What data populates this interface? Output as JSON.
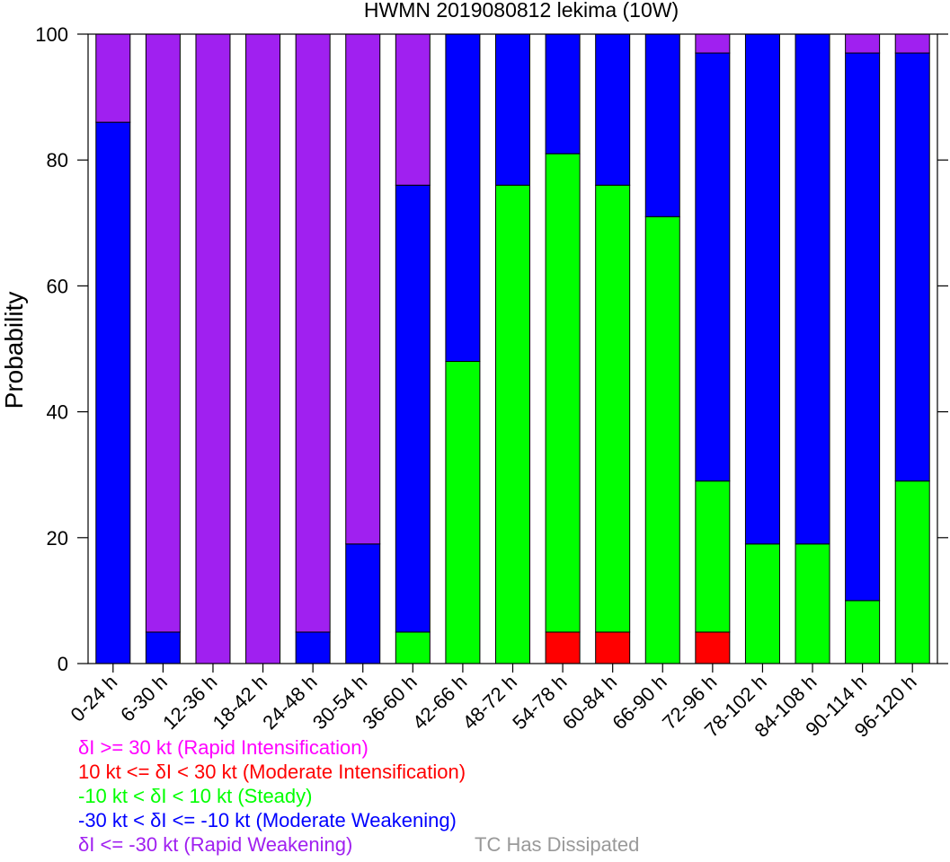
{
  "chart_data": {
    "type": "bar",
    "stacked": true,
    "title": "HWMN 2019080812 lekima (10W)",
    "xlabel": "",
    "ylabel": "Probability",
    "ylim": [
      0,
      100
    ],
    "yticks": [
      0,
      20,
      40,
      60,
      80,
      100
    ],
    "categories": [
      "0-24 h",
      "6-30 h",
      "12-36 h",
      "18-42 h",
      "24-48 h",
      "30-54 h",
      "36-60 h",
      "42-66 h",
      "48-72 h",
      "54-78 h",
      "60-84 h",
      "66-90 h",
      "72-96 h",
      "78-102 h",
      "84-108 h",
      "90-114 h",
      "96-120 h"
    ],
    "series": [
      {
        "name": "Rapid Intensification",
        "color": "#ff00ff",
        "values": [
          0,
          0,
          0,
          0,
          0,
          0,
          0,
          0,
          0,
          0,
          0,
          0,
          0,
          0,
          0,
          0,
          0
        ]
      },
      {
        "name": "Moderate Intensification",
        "color": "#ff0000",
        "values": [
          0,
          0,
          0,
          0,
          0,
          0,
          0,
          0,
          0,
          5,
          5,
          0,
          5,
          0,
          0,
          0,
          0
        ]
      },
      {
        "name": "Steady",
        "color": "#00ff00",
        "values": [
          0,
          0,
          0,
          0,
          0,
          0,
          5,
          48,
          76,
          76,
          71,
          71,
          24,
          19,
          19,
          10,
          29
        ]
      },
      {
        "name": "Moderate Weakening",
        "color": "#0000ff",
        "values": [
          86,
          5,
          0,
          0,
          5,
          19,
          71,
          52,
          24,
          19,
          24,
          29,
          68,
          81,
          81,
          87,
          68
        ]
      },
      {
        "name": "Rapid Weakening",
        "color": "#a020f0",
        "values": [
          14,
          95,
          100,
          100,
          95,
          81,
          24,
          0,
          0,
          0,
          0,
          0,
          3,
          0,
          0,
          3,
          3
        ]
      }
    ],
    "stack_order": [
      "Moderate Intensification",
      "Steady",
      "Moderate Weakening",
      "Rapid Weakening",
      "Rapid Intensification"
    ],
    "legend": [
      {
        "text": "δI >= 30 kt (Rapid Intensification)",
        "color": "#ff00ff"
      },
      {
        "text": "10 kt <= δI < 30 kt (Moderate Intensification)",
        "color": "#ff0000"
      },
      {
        "text": "-10 kt < δI < 10 kt (Steady)",
        "color": "#00ff00"
      },
      {
        "text": "-30 kt < δI <= -10 kt (Moderate Weakening)",
        "color": "#0000ff"
      },
      {
        "text": "δI <= -30 kt (Rapid Weakening)",
        "color": "#a020f0"
      },
      {
        "text": "TC Has Dissipated",
        "color": "#999999"
      }
    ]
  }
}
